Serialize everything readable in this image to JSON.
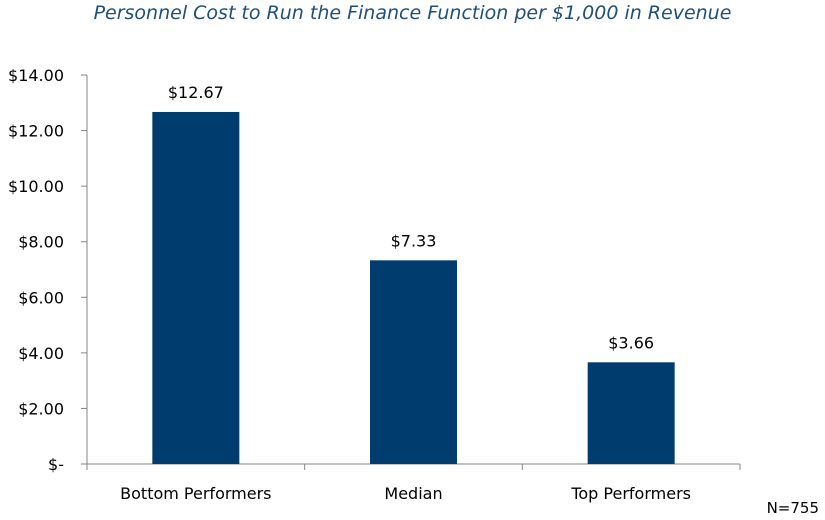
{
  "chart_data": {
    "type": "bar",
    "title": "Personnel Cost to Run the Finance Function per $1,000 in Revenue",
    "categories": [
      "Bottom Performers",
      "Median",
      "Top Performers"
    ],
    "values": [
      12.67,
      7.33,
      3.66
    ],
    "data_labels": [
      "$12.67",
      "$7.33",
      "$3.66"
    ],
    "y_tick_values": [
      0,
      2,
      4,
      6,
      8,
      10,
      12,
      14
    ],
    "y_tick_labels": [
      "$-",
      "$2.00",
      "$4.00",
      "$6.00",
      "$8.00",
      "$10.00",
      "$12.00",
      "$14.00"
    ],
    "ylim": [
      0,
      14
    ],
    "xlabel": "",
    "ylabel": "",
    "grid": false,
    "legend": "none",
    "bar_color": "#003d6e",
    "note": "N=755"
  }
}
